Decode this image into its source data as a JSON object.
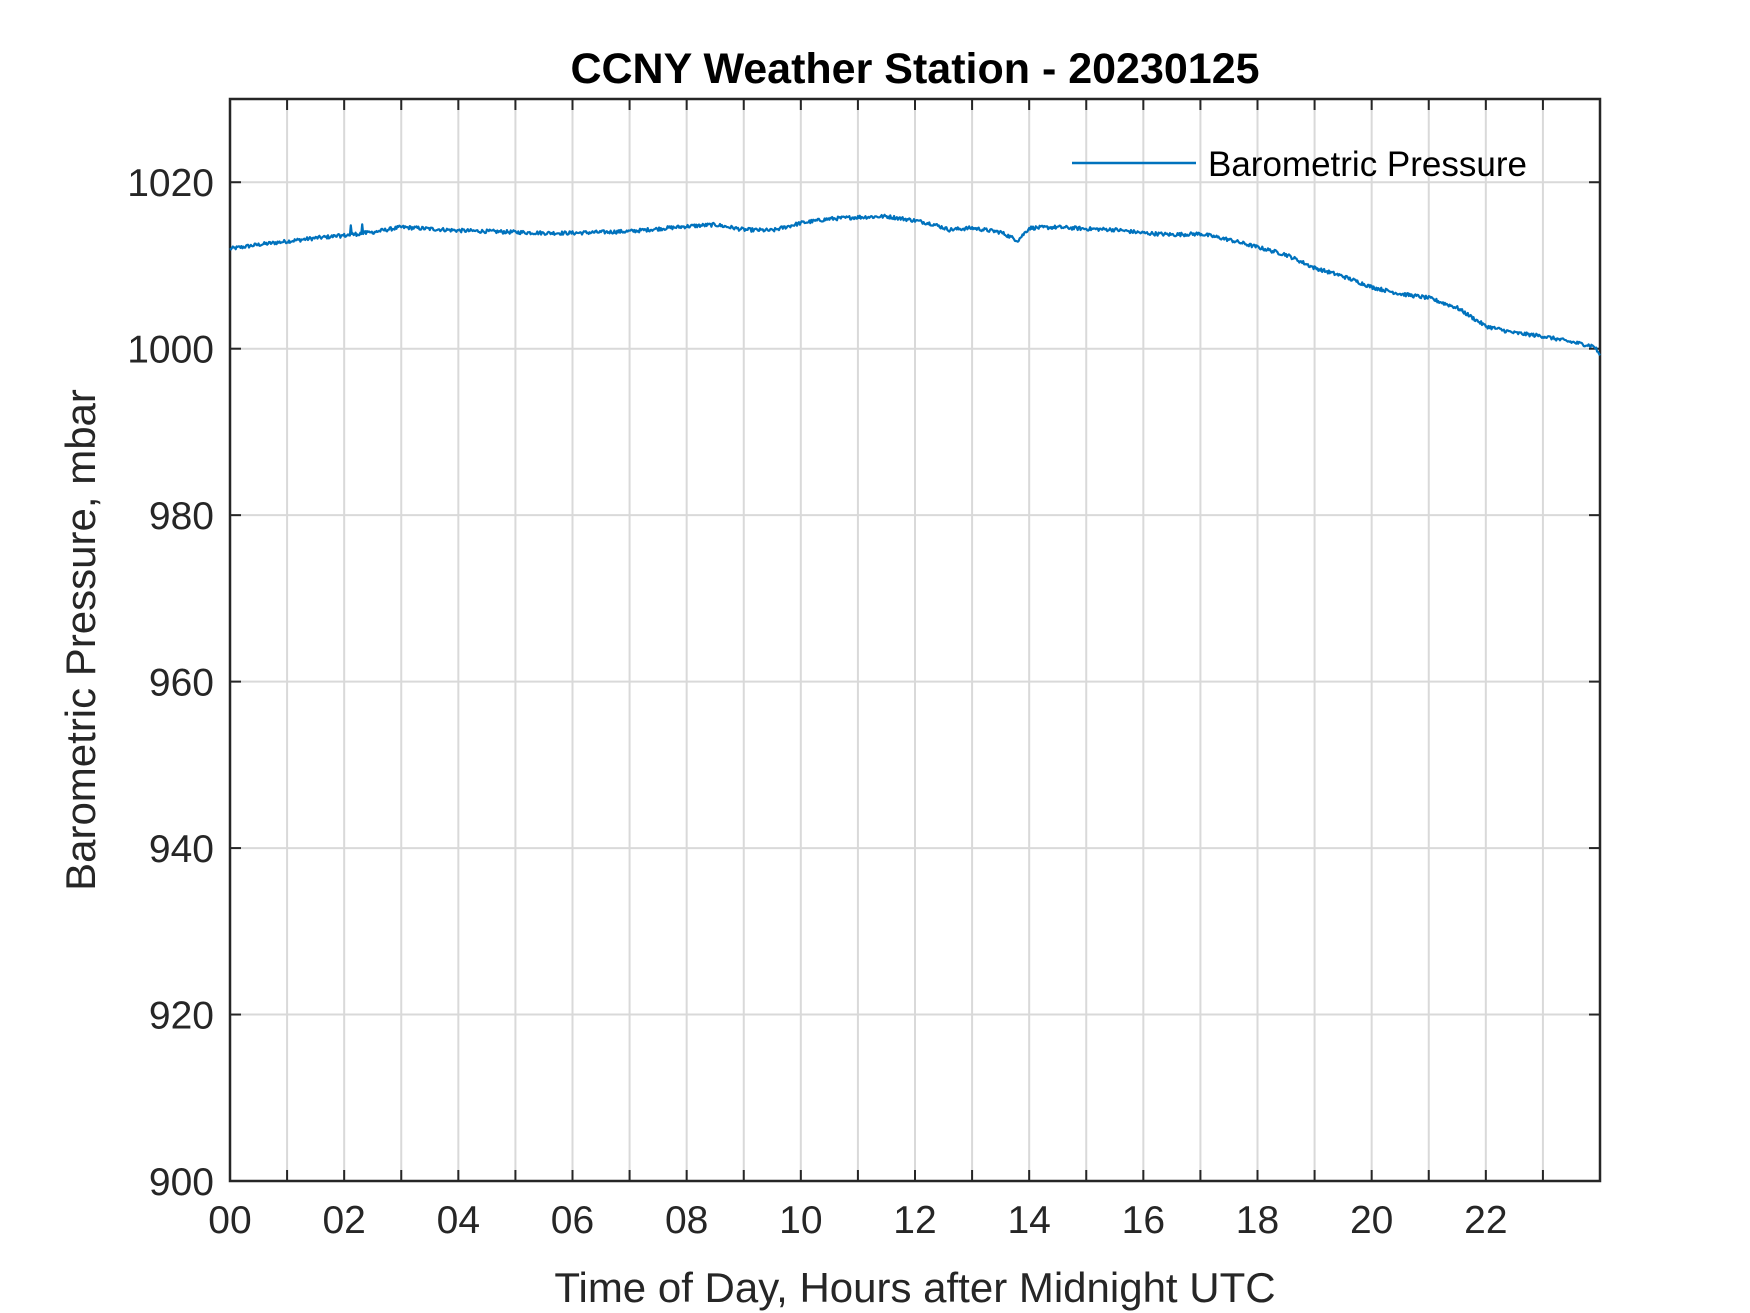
{
  "chart_data": {
    "type": "line",
    "title": "CCNY Weather Station - 20230125",
    "xlabel": "Time of Day, Hours after Midnight UTC",
    "ylabel": "Barometric Pressure, mbar",
    "xlim": [
      0,
      24
    ],
    "ylim": [
      900,
      1030
    ],
    "xticks": [
      0,
      2,
      4,
      6,
      8,
      10,
      12,
      14,
      16,
      18,
      20,
      22
    ],
    "xtick_labels": [
      "00",
      "02",
      "04",
      "06",
      "08",
      "10",
      "12",
      "14",
      "16",
      "18",
      "20",
      "22"
    ],
    "xgrid_step_hours": 1,
    "yticks": [
      900,
      920,
      940,
      960,
      980,
      1000,
      1020
    ],
    "ytick_labels": [
      "900",
      "920",
      "940",
      "960",
      "980",
      "1000",
      "1020"
    ],
    "grid": true,
    "legend": {
      "position": "top-right",
      "entries": [
        "Barometric Pressure"
      ]
    },
    "series": [
      {
        "name": "Barometric Pressure",
        "color": "#0072BD",
        "x": [
          0,
          0.5,
          1,
          1.5,
          2,
          2.5,
          3,
          3.5,
          4,
          4.5,
          5,
          5.5,
          6,
          6.5,
          7,
          7.5,
          8,
          8.5,
          9,
          9.5,
          10,
          10.5,
          11,
          11.5,
          12,
          12.3,
          12.6,
          13,
          13.5,
          13.8,
          14,
          14.5,
          15,
          15.5,
          16,
          16.5,
          17,
          17.5,
          18,
          18.5,
          19,
          19.5,
          20,
          20.5,
          21,
          21.5,
          22,
          22.5,
          23,
          23.5,
          23.9,
          24
        ],
        "values": [
          1012,
          1012.5,
          1012.9,
          1013.3,
          1013.6,
          1014.0,
          1014.6,
          1014.4,
          1014.2,
          1014.1,
          1014.0,
          1013.9,
          1013.9,
          1014.0,
          1014.1,
          1014.4,
          1014.7,
          1014.9,
          1014.3,
          1014.2,
          1015.1,
          1015.6,
          1015.8,
          1015.9,
          1015.4,
          1015.0,
          1014.3,
          1014.5,
          1014.0,
          1013.0,
          1014.5,
          1014.6,
          1014.4,
          1014.3,
          1013.9,
          1013.7,
          1013.8,
          1013.1,
          1012.2,
          1011.3,
          1009.7,
          1008.7,
          1007.4,
          1006.6,
          1006.1,
          1004.9,
          1002.7,
          1001.9,
          1001.5,
          1000.8,
          1000.3,
          999.2
        ]
      }
    ]
  }
}
